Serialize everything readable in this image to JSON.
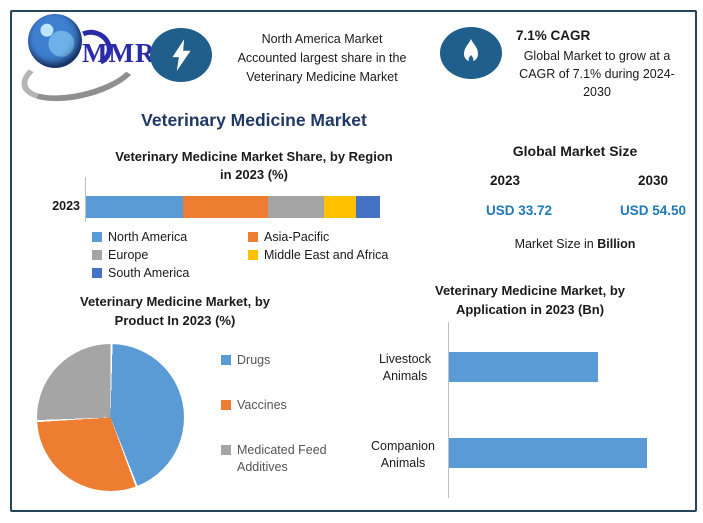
{
  "colors": {
    "accent_navy": "#1F3864",
    "icon_blue": "#205E8B",
    "value_blue": "#1F78B8",
    "frame_border": "#27455A"
  },
  "header": {
    "logo": {
      "text": "MMR"
    },
    "highlight": {
      "lines": [
        "North America Market",
        "Accounted largest share in the",
        "Veterinary Medicine Market"
      ]
    },
    "cagr": {
      "title": "7.1% CAGR",
      "lines": [
        "Global Market to grow at a",
        "CAGR of 7.1% during 2024-",
        "2030"
      ]
    }
  },
  "main_title": "Veterinary Medicine Market",
  "region_section": {
    "title_line1": "Veterinary Medicine Market Share, by Region",
    "title_line2": "in 2023 (%)",
    "year_label": "2023"
  },
  "market_size": {
    "title": "Global Market Size",
    "year_left": "2023",
    "year_right": "2030",
    "value_left": "USD 33.72",
    "value_right": "USD 54.50",
    "footer_prefix": "Market Size in ",
    "footer_bold": "Billion"
  },
  "product_section": {
    "title_line1": "Veterinary Medicine Market, by",
    "title_line2": "Product In 2023 (%)"
  },
  "application_section": {
    "title_line1": "Veterinary Medicine Market, by",
    "title_line2": "Application in 2023 (Bn)"
  },
  "chart_data": [
    {
      "type": "bar",
      "subtype": "stacked-horizontal",
      "title": "Veterinary Medicine Market Share, by Region in 2023 (%)",
      "categories": [
        "2023"
      ],
      "series": [
        {
          "name": "North America",
          "values": [
            33
          ],
          "color": "#5B9BD5"
        },
        {
          "name": "Asia-Pacific",
          "values": [
            29
          ],
          "color": "#ED7D31"
        },
        {
          "name": "Europe",
          "values": [
            19
          ],
          "color": "#A5A5A5"
        },
        {
          "name": "Middle East and Africa",
          "values": [
            11
          ],
          "color": "#FFC000"
        },
        {
          "name": "South America",
          "values": [
            8
          ],
          "color": "#4472C4"
        }
      ],
      "xlim": [
        0,
        100
      ],
      "legend_position": "bottom",
      "grid": false
    },
    {
      "type": "pie",
      "title": "Veterinary Medicine Market, by Product In 2023 (%)",
      "labels": [
        "Drugs",
        "Vaccines",
        "Medicated Feed Additives"
      ],
      "values": [
        44,
        30,
        26
      ],
      "colors": [
        "#5B9BD5",
        "#ED7D31",
        "#A5A5A5"
      ],
      "start_angle_deg": 0,
      "direction": "clockwise",
      "legend_position": "right"
    },
    {
      "type": "bar",
      "subtype": "horizontal",
      "title": "Veterinary Medicine Market, by Application in 2023 (Bn)",
      "categories": [
        "Livestock Animals",
        "Companion Animals"
      ],
      "values": [
        75,
        100
      ],
      "value_unit": "relative length, % of longest bar (no value axis shown)",
      "bar_color": "#5B9BD5",
      "grid": false
    }
  ]
}
